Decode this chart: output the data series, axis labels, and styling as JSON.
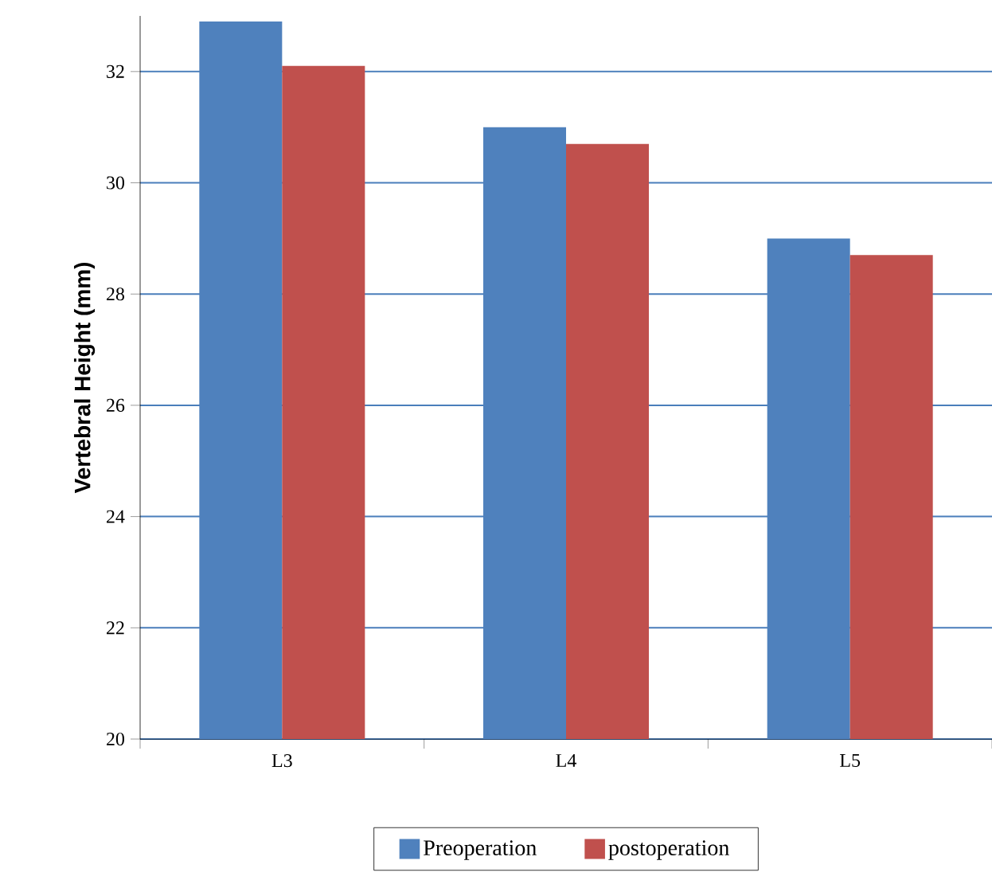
{
  "chart_data": {
    "type": "bar",
    "ylabel": "Vertebral Height (mm)",
    "categories": [
      "L3",
      "L4",
      "L5"
    ],
    "series": [
      {
        "name": "Preoperation",
        "color": "#4f81bd",
        "values": [
          32.9,
          31.0,
          29.0
        ]
      },
      {
        "name": "postoperation",
        "color": "#c0504d",
        "values": [
          32.1,
          30.7,
          28.7
        ]
      }
    ],
    "ylim": [
      20,
      33
    ],
    "yticks": [
      20,
      22,
      24,
      26,
      28,
      30,
      32
    ],
    "grid": "y",
    "legend": "bottom"
  }
}
